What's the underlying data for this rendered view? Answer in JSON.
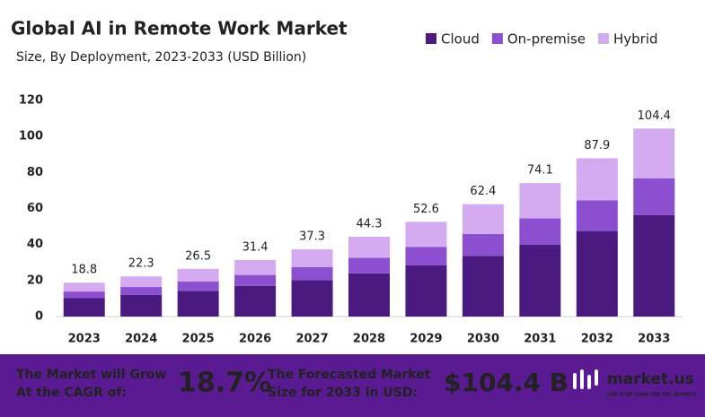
{
  "chart_data": {
    "type": "stacked_bar",
    "title": "Global AI in Remote Work Market",
    "subtitle": "Size, By Deployment, 2023-2033 (USD Billion)",
    "categories": [
      "2023",
      "2024",
      "2025",
      "2026",
      "2027",
      "2028",
      "2029",
      "2030",
      "2031",
      "2032",
      "2033"
    ],
    "series": [
      {
        "name": "Cloud",
        "color": "#4b1a80",
        "values": [
          10.2,
          12.1,
          14.3,
          17.0,
          20.2,
          24.0,
          28.4,
          33.7,
          40.0,
          47.5,
          56.4
        ]
      },
      {
        "name": "On-premise",
        "color": "#8b4fcf",
        "values": [
          3.7,
          4.3,
          5.2,
          6.1,
          7.3,
          8.6,
          10.3,
          12.2,
          14.5,
          17.1,
          20.4
        ]
      },
      {
        "name": "Hybrid",
        "color": "#d4aaf0",
        "values": [
          4.9,
          5.9,
          7.0,
          8.3,
          9.8,
          11.7,
          13.9,
          16.5,
          19.6,
          23.3,
          27.6
        ]
      }
    ],
    "totals": [
      18.8,
      22.3,
      26.5,
      31.4,
      37.3,
      44.3,
      52.6,
      62.4,
      74.1,
      87.9,
      104.4
    ],
    "ylim": [
      0,
      120
    ],
    "yticks": [
      0,
      20,
      40,
      60,
      80,
      100,
      120
    ],
    "grid": false,
    "legend": "top-right"
  },
  "footer": {
    "cagr_text": [
      "The Market will Grow",
      "At the CAGR of:"
    ],
    "cagr_value": "18.7%",
    "forecast_text": [
      "The Forecasted Market",
      "Size for 2033 in USD:"
    ],
    "forecast_value": "$104.4 B",
    "brand": "market.us",
    "tagline": "ONE STOP SHOP FOR THE REPORTS"
  }
}
